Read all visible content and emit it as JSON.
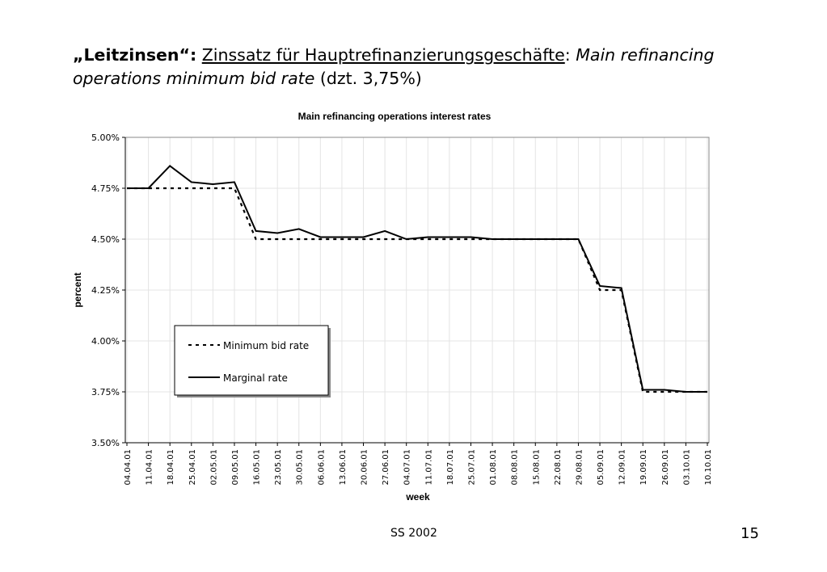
{
  "slide": {
    "title_bold": "„Leitzinsen“:",
    "title_underlined": "Zinssatz für Hauptrefinanzierungsgeschäfte",
    "title_colon": ":",
    "title_italic": "Main refinancing operations minimum bid rate",
    "title_tail": "(dzt. 3,75%)",
    "footer_center": "SS 2002",
    "page_number": "15"
  },
  "chart_data": {
    "type": "line",
    "title": "Main refinancing operations interest rates",
    "xlabel": "week",
    "ylabel": "percent",
    "ylim": [
      3.5,
      5.0
    ],
    "yticks": [
      "3.50%",
      "3.75%",
      "4.00%",
      "4.25%",
      "4.50%",
      "4.75%",
      "5.00%"
    ],
    "ytick_values": [
      3.5,
      3.75,
      4.0,
      4.25,
      4.5,
      4.75,
      5.0
    ],
    "grid": true,
    "legend_placement": "lower-left",
    "categories": [
      "04.04.01",
      "11.04.01",
      "18.04.01",
      "25.04.01",
      "02.05.01",
      "09.05.01",
      "16.05.01",
      "23.05.01",
      "30.05.01",
      "06.06.01",
      "13.06.01",
      "20.06.01",
      "27.06.01",
      "04.07.01",
      "11.07.01",
      "18.07.01",
      "25.07.01",
      "01.08.01",
      "08.08.01",
      "15.08.01",
      "22.08.01",
      "29.08.01",
      "05.09.01",
      "12.09.01",
      "19.09.01",
      "26.09.01",
      "03.10.01",
      "10.10.01"
    ],
    "series": [
      {
        "name": "Minimum bid rate",
        "style": "dashed",
        "values": [
          4.75,
          4.75,
          4.75,
          4.75,
          4.75,
          4.75,
          4.5,
          4.5,
          4.5,
          4.5,
          4.5,
          4.5,
          4.5,
          4.5,
          4.5,
          4.5,
          4.5,
          4.5,
          4.5,
          4.5,
          4.5,
          4.5,
          4.25,
          4.25,
          3.75,
          3.75,
          3.75,
          3.75
        ]
      },
      {
        "name": "Marginal rate",
        "style": "solid",
        "values": [
          4.75,
          4.75,
          4.86,
          4.78,
          4.77,
          4.78,
          4.54,
          4.53,
          4.55,
          4.51,
          4.51,
          4.51,
          4.54,
          4.5,
          4.51,
          4.51,
          4.51,
          4.5,
          4.5,
          4.5,
          4.5,
          4.5,
          4.27,
          4.26,
          3.76,
          3.76,
          3.75,
          3.75
        ]
      }
    ]
  }
}
